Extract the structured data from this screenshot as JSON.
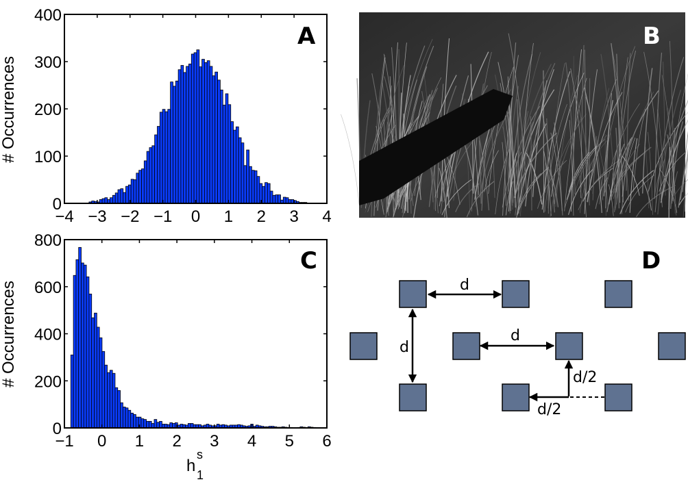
{
  "panels": {
    "a": "A",
    "b": "B",
    "c": "C",
    "d": "D"
  },
  "diagram": {
    "label_d": "d",
    "label_half": "d/2",
    "square_color": "#5f7291"
  },
  "chart_data": [
    {
      "type": "bar",
      "panel": "A",
      "title": "",
      "xlabel": "",
      "ylabel": "# Occurrences",
      "xlim": [
        -4,
        4
      ],
      "ylim": [
        0,
        400
      ],
      "xticks": [
        "−4",
        "−3",
        "−2",
        "−1",
        "0",
        "1",
        "2",
        "3",
        "4"
      ],
      "yticks": [
        "0",
        "100",
        "200",
        "300",
        "400"
      ],
      "bar_color": "#0a3cff",
      "bin_start": -3.25,
      "bin_width": 0.08,
      "values": [
        3,
        5,
        4,
        3,
        8,
        10,
        12,
        8,
        12,
        17,
        22,
        29,
        31,
        23,
        36,
        39,
        51,
        50,
        64,
        70,
        73,
        90,
        110,
        118,
        122,
        145,
        163,
        193,
        199,
        194,
        199,
        257,
        248,
        259,
        283,
        292,
        277,
        290,
        295,
        316,
        319,
        325,
        289,
        305,
        298,
        302,
        290,
        270,
        278,
        261,
        240,
        208,
        232,
        209,
        173,
        155,
        162,
        139,
        128,
        80,
        113,
        78,
        70,
        69,
        57,
        42,
        36,
        44,
        42,
        26,
        17,
        18,
        18,
        7,
        13,
        12,
        8,
        8,
        6,
        4,
        2,
        2,
        2
      ]
    },
    {
      "type": "bar",
      "panel": "C",
      "title": "",
      "xlabel": "h",
      "xlabel_sup": "s",
      "xlabel_sub": "1",
      "ylabel": "# Occurrences",
      "xlim": [
        -1,
        6
      ],
      "ylim": [
        0,
        800
      ],
      "xticks": [
        "−1",
        "0",
        "1",
        "2",
        "3",
        "4",
        "5",
        "6"
      ],
      "yticks": [
        "0",
        "200",
        "400",
        "600",
        "800"
      ],
      "bar_color": "#0a3cff",
      "bin_start": -0.83,
      "bin_width": 0.0695,
      "values": [
        310,
        648,
        715,
        767,
        701,
        692,
        642,
        569,
        468,
        488,
        428,
        383,
        325,
        267,
        235,
        245,
        232,
        171,
        159,
        107,
        89,
        85,
        75,
        63,
        57,
        46,
        46,
        39,
        36,
        28,
        28,
        19,
        36,
        24,
        28,
        16,
        16,
        14,
        22,
        19,
        22,
        12,
        16,
        14,
        12,
        19,
        19,
        14,
        14,
        14,
        9,
        12,
        16,
        12,
        9,
        9,
        16,
        12,
        14,
        12,
        9,
        12,
        12,
        12,
        14,
        12,
        9,
        7,
        9,
        16,
        7,
        12,
        9,
        7,
        5,
        5,
        7,
        7,
        5,
        3,
        3,
        5,
        3,
        2,
        2,
        0,
        1,
        2,
        5,
        3,
        2,
        5,
        3,
        2
      ]
    }
  ]
}
